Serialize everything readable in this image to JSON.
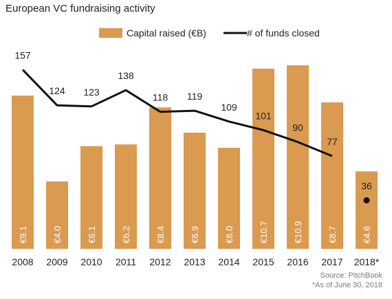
{
  "title": "European VC fundraising activity",
  "source": "Source: PitchBook",
  "note": "*As of June 30, 2018",
  "colors": {
    "bar": "#DA9A50",
    "line": "#111111",
    "text": "#222222"
  },
  "chart_data": {
    "type": "bar",
    "categories": [
      "2008",
      "2009",
      "2010",
      "2011",
      "2012",
      "2013",
      "2014",
      "2015",
      "2016",
      "2017",
      "2018*"
    ],
    "series": [
      {
        "name": "Capital raised (€B)",
        "type": "bar",
        "values": [
          9.1,
          4.0,
          6.1,
          6.2,
          8.4,
          6.9,
          6.0,
          10.7,
          10.9,
          8.7,
          4.6
        ],
        "labels": [
          "€9.1",
          "€4.0",
          "€6.1",
          "€6.2",
          "€8.4",
          "€6.9",
          "€6.0",
          "€10.7",
          "€10.9",
          "€8.7",
          "€4.6"
        ]
      },
      {
        "name": "# of funds closed",
        "type": "line",
        "values": [
          157,
          124,
          123,
          138,
          118,
          119,
          109,
          101,
          90,
          77,
          36
        ],
        "labels": [
          "157",
          "124",
          "123",
          "138",
          "118",
          "119",
          "109",
          "101",
          "90",
          "77",
          "36"
        ],
        "point_only_last": true
      }
    ],
    "legend_position": "top-center",
    "grid": false,
    "bar_ylim": [
      0,
      12.5
    ],
    "line_ylim": [
      -9,
      177
    ]
  }
}
